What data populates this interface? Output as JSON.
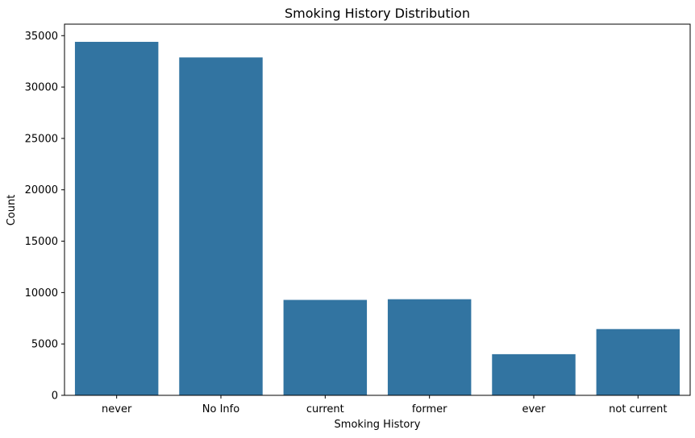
{
  "chart_data": {
    "type": "bar",
    "title": "Smoking History Distribution",
    "xlabel": "Smoking History",
    "ylabel": "Count",
    "categories": [
      "never",
      "No Info",
      "current",
      "former",
      "ever",
      "not current"
    ],
    "values": [
      34398,
      32881,
      9286,
      9352,
      4004,
      6447
    ],
    "ylim": [
      0,
      36119
    ],
    "yticks": [
      0,
      5000,
      10000,
      15000,
      20000,
      25000,
      30000,
      35000
    ],
    "bar_color": "#3274a1",
    "grid": false,
    "legend": "none"
  }
}
